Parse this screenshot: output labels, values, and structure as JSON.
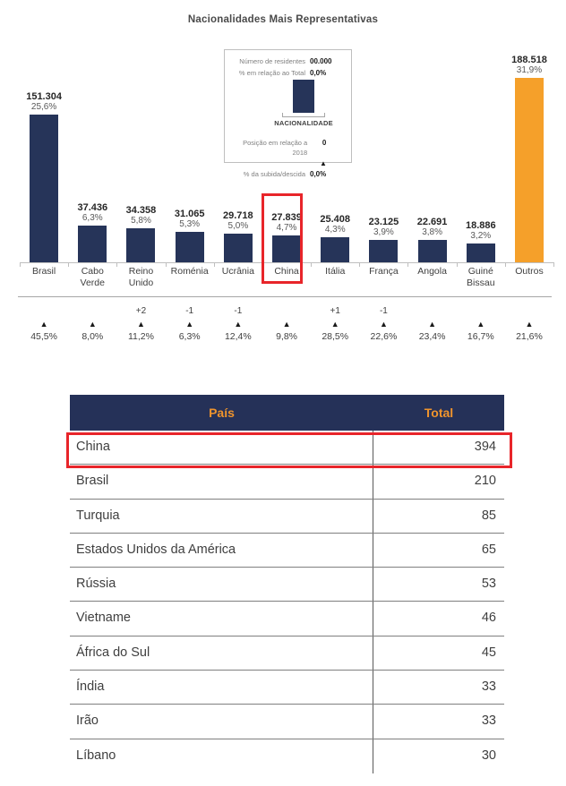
{
  "title": "Nacionalidades Mais Representativas",
  "colors": {
    "bar_navy": "#263459",
    "bar_orange": "#f5a02a",
    "highlight_red": "#e8252a",
    "header_navy": "#253158",
    "header_text_orange": "#ef942d"
  },
  "legend": {
    "residents_label": "Número de residentes",
    "residents_value": "00.000",
    "pct_total_label": "% em relação ao Total",
    "pct_total_value": "0,0%",
    "axis_label": "NACIONALIDADE",
    "position_label": "Posição em relação a 2018",
    "position_value": "0",
    "triangle": "▲",
    "updown_label": "% da subida/descida",
    "updown_value": "0,0%"
  },
  "chart_data": {
    "type": "bar",
    "title": "Nacionalidades Mais Representativas",
    "categories": [
      "Brasil",
      "Cabo Verde",
      "Reino Unido",
      "Roménia",
      "Ucrânia",
      "China",
      "Itália",
      "França",
      "Angola",
      "Guiné Bissau",
      "Outros"
    ],
    "values": [
      151304,
      37436,
      34358,
      31065,
      29718,
      27839,
      25408,
      23125,
      22691,
      18886,
      188518
    ],
    "value_labels": [
      "151.304",
      "37.436",
      "34.358",
      "31.065",
      "29.718",
      "27.839",
      "25.408",
      "23.125",
      "22.691",
      "18.886",
      "188.518"
    ],
    "pct_labels": [
      "25,6%",
      "6,3%",
      "5,8%",
      "5,3%",
      "5,0%",
      "4,7%",
      "4,3%",
      "3,9%",
      "3,8%",
      "3,2%",
      "31,9%"
    ],
    "position_changes": [
      "",
      "",
      "+2",
      "-1",
      "-1",
      "",
      "+1",
      "-1",
      "",
      "",
      ""
    ],
    "trend_triangles": [
      "▲",
      "▲",
      "▲",
      "▲",
      "▲",
      "▲",
      "▲",
      "▲",
      "▲",
      "▲",
      "▲"
    ],
    "growth_pcts": [
      "45,5%",
      "8,0%",
      "11,2%",
      "6,3%",
      "12,4%",
      "9,8%",
      "28,5%",
      "22,6%",
      "23,4%",
      "16,7%",
      "21,6%"
    ],
    "bar_color_default": "#263459",
    "bar_color_last": "#f5a02a",
    "highlighted_category": "China",
    "xlabel": "",
    "ylabel": "",
    "grid": false,
    "legend_position": "none"
  },
  "table": {
    "headers": [
      "País",
      "Total"
    ],
    "rows": [
      {
        "country": "China",
        "total": "394"
      },
      {
        "country": "Brasil",
        "total": "210"
      },
      {
        "country": "Turquia",
        "total": "85"
      },
      {
        "country": "Estados Unidos da América",
        "total": "65"
      },
      {
        "country": "Rússia",
        "total": "53"
      },
      {
        "country": "Vietname",
        "total": "46"
      },
      {
        "country": "África do Sul",
        "total": "45"
      },
      {
        "country": "Índia",
        "total": "33"
      },
      {
        "country": "Irão",
        "total": "33"
      },
      {
        "country": "Líbano",
        "total": "30"
      }
    ],
    "highlighted_row": "China"
  }
}
